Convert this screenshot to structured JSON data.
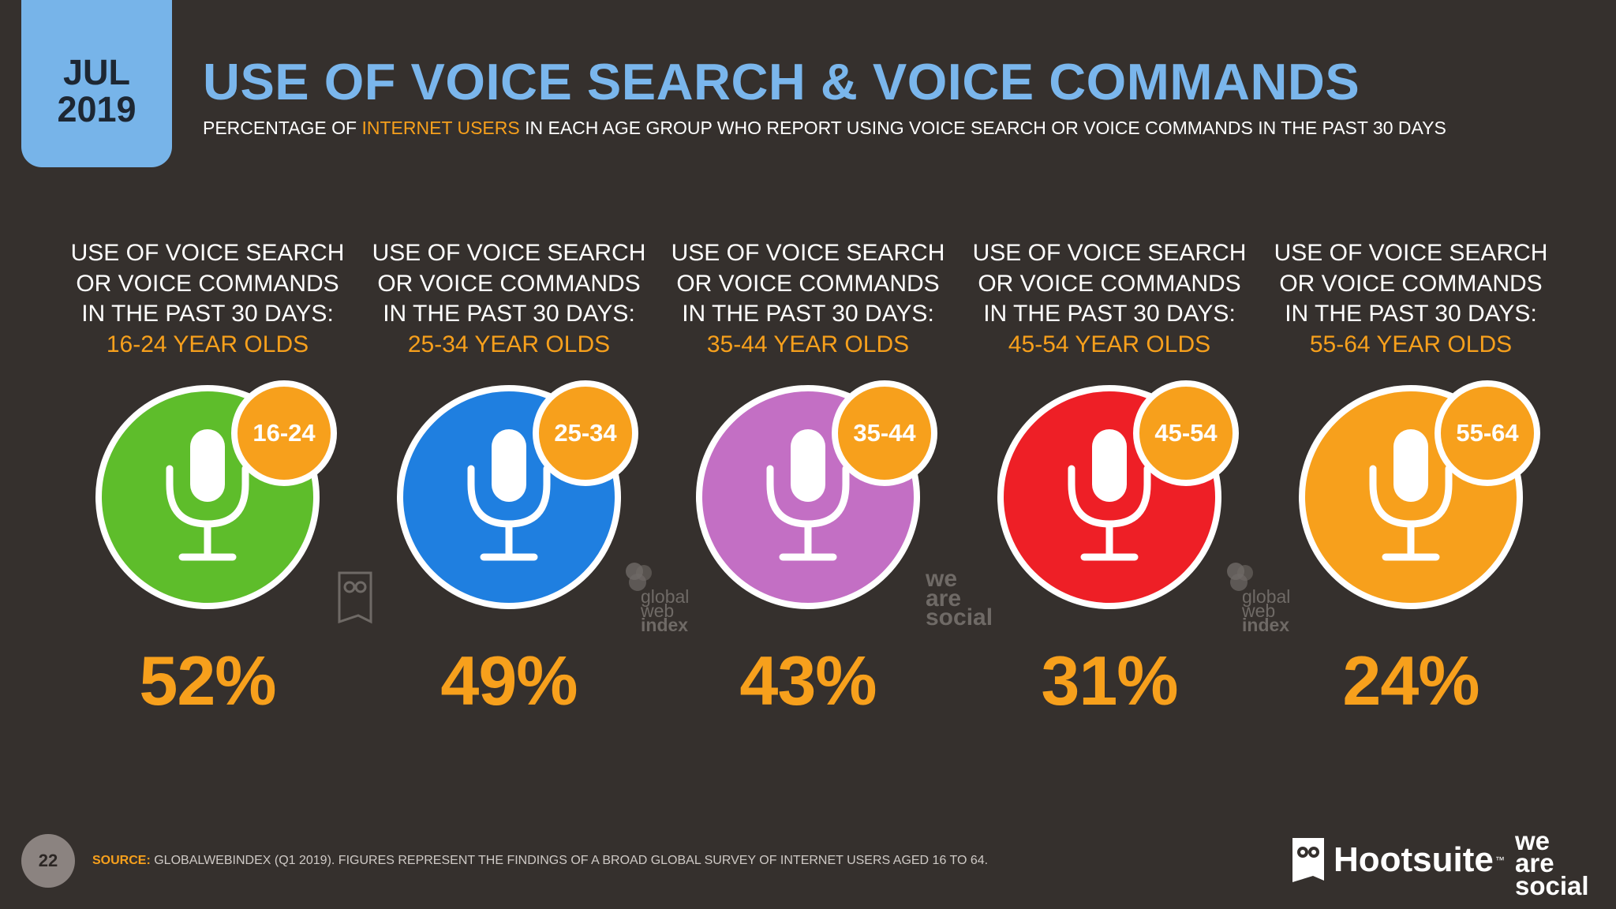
{
  "header": {
    "month": "JUL",
    "year": "2019",
    "title": "USE OF VOICE SEARCH & VOICE COMMANDS",
    "subtitle_pre": "PERCENTAGE OF ",
    "subtitle_highlight": "INTERNET USERS",
    "subtitle_post": " IN EACH AGE GROUP WHO REPORT USING VOICE SEARCH OR VOICE COMMANDS IN THE PAST 30 DAYS"
  },
  "label_lines": [
    "USE OF VOICE SEARCH",
    "OR VOICE COMMANDS",
    "IN THE PAST 30 DAYS:"
  ],
  "chart_data": {
    "type": "table",
    "categories": [
      "16-24",
      "25-34",
      "35-44",
      "45-54",
      "55-64"
    ],
    "values": [
      52,
      49,
      43,
      31,
      24
    ],
    "unit": "%",
    "items": [
      {
        "badge": "16-24",
        "age_label": "16-24 YEAR OLDS",
        "value_text": "52%",
        "color": "#5ebd2b"
      },
      {
        "badge": "25-34",
        "age_label": "25-34 YEAR OLDS",
        "value_text": "49%",
        "color": "#1f7fe0"
      },
      {
        "badge": "35-44",
        "age_label": "35-44 YEAR OLDS",
        "value_text": "43%",
        "color": "#c36fc4"
      },
      {
        "badge": "45-54",
        "age_label": "45-54 YEAR OLDS",
        "value_text": "31%",
        "color": "#ee1f26"
      },
      {
        "badge": "55-64",
        "age_label": "55-64 YEAR OLDS",
        "value_text": "24%",
        "color": "#f7a01c"
      }
    ]
  },
  "watermarks": {
    "gwi": [
      "global",
      "web",
      "index"
    ],
    "was": [
      "we",
      "are",
      "social"
    ]
  },
  "footer": {
    "page_number": "22",
    "source_label": "SOURCE:",
    "source_text": " GLOBALWEBINDEX (Q1 2019). FIGURES REPRESENT THE FINDINGS OF A BROAD GLOBAL SURVEY OF INTERNET USERS AGED 16 TO 64.",
    "hootsuite": "Hootsuite",
    "tm": "™",
    "was_lines": [
      "we",
      "are",
      "social"
    ]
  },
  "colors": {
    "background": "#35302d",
    "title_blue": "#7ab6ec",
    "accent_orange": "#f7a01c"
  }
}
